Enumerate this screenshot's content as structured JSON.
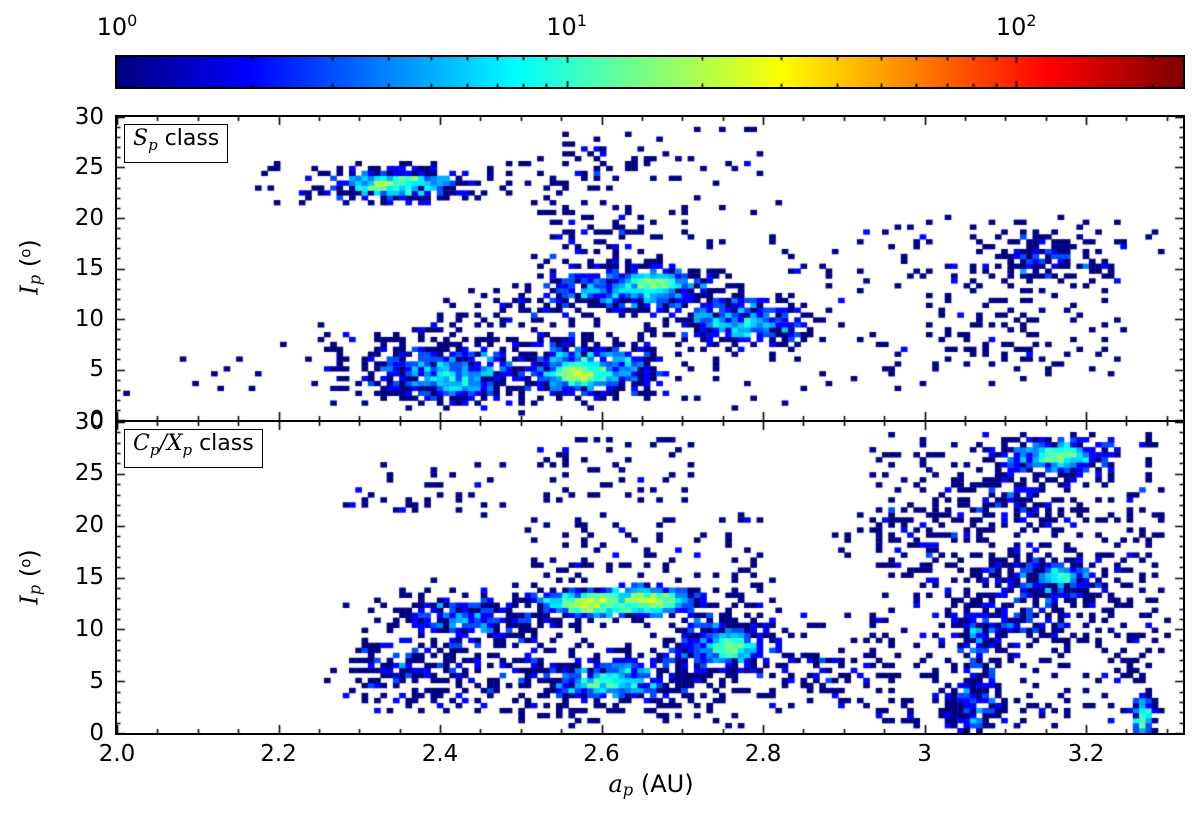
{
  "figure": {
    "background": "#ffffff",
    "kind": "matplotlib-style two-panel 2D histogram of asteroid proper elements"
  },
  "colorbar": {
    "orientation": "horizontal",
    "colormap": "jet",
    "scale": "log",
    "vmin": 1,
    "vmax": 235,
    "ticks": [
      {
        "base": "10",
        "exp": "0",
        "value": 1
      },
      {
        "base": "10",
        "exp": "1",
        "value": 10
      },
      {
        "base": "10",
        "exp": "2",
        "value": 100
      }
    ]
  },
  "axes": {
    "xlim": [
      2.0,
      3.32
    ],
    "ylim": [
      0,
      30
    ],
    "xlabel_parts": [
      {
        "text": "a",
        "kind": "mvar"
      },
      {
        "text": "p",
        "kind": "msub"
      },
      {
        "text": " (AU)",
        "kind": "plain"
      }
    ],
    "ylabel_parts": [
      {
        "text": "I",
        "kind": "mvar"
      },
      {
        "text": "p",
        "kind": "msub"
      },
      {
        "text": " (",
        "kind": "plain"
      },
      {
        "text": "o",
        "kind": "msup"
      },
      {
        "text": ")",
        "kind": "plain"
      }
    ],
    "xticks": [
      {
        "label": "2.0",
        "value": 2.0
      },
      {
        "label": "2.2",
        "value": 2.2
      },
      {
        "label": "2.4",
        "value": 2.4
      },
      {
        "label": "2.6",
        "value": 2.6
      },
      {
        "label": "2.8",
        "value": 2.8
      },
      {
        "label": "3",
        "value": 3.0
      },
      {
        "label": "3.2",
        "value": 3.2
      }
    ],
    "yticks_top": [
      {
        "label": "30",
        "value": 30
      },
      {
        "label": "25",
        "value": 25
      },
      {
        "label": "20",
        "value": 20
      },
      {
        "label": "15",
        "value": 15
      },
      {
        "label": "10",
        "value": 10
      },
      {
        "label": "5",
        "value": 5
      },
      {
        "label": "0",
        "value": 0
      }
    ],
    "yticks_bottom": [
      {
        "label": "30",
        "value": 30
      },
      {
        "label": "25",
        "value": 25
      },
      {
        "label": "20",
        "value": 20
      },
      {
        "label": "15",
        "value": 15
      },
      {
        "label": "10",
        "value": 10
      },
      {
        "label": "5",
        "value": 5
      },
      {
        "label": "0",
        "value": 0
      }
    ]
  },
  "chart_data": [
    {
      "type": "heatmap",
      "title": "S_p class",
      "label_parts": [
        {
          "text": "S",
          "kind": "mvar"
        },
        {
          "text": "p",
          "kind": "msub"
        },
        {
          "text": " class",
          "kind": "plain"
        }
      ],
      "xlabel": "a_p (AU)",
      "ylabel": "I_p (deg)",
      "xlim": [
        2.0,
        3.32
      ],
      "ylim": [
        0,
        30
      ],
      "color_scale": {
        "type": "log",
        "vmin": 1,
        "vmax": 235,
        "colormap": "jet"
      },
      "bins": {
        "nx": 170,
        "ny": 62
      },
      "cluster_format": [
        "x_center_au",
        "y_center_deg",
        "x_sigma_au",
        "y_sigma_deg",
        "n_points"
      ],
      "scatter_format": [
        "x_min",
        "x_max",
        "y_min",
        "y_max",
        "n_points"
      ],
      "clusters": [
        [
          2.35,
          23.4,
          0.04,
          0.7,
          420
        ],
        [
          2.33,
          23.2,
          0.015,
          0.4,
          90
        ],
        [
          2.4,
          5.0,
          0.05,
          1.5,
          420
        ],
        [
          2.42,
          3.8,
          0.025,
          0.9,
          160
        ],
        [
          2.59,
          5.0,
          0.04,
          1.2,
          550
        ],
        [
          2.57,
          4.5,
          0.018,
          0.6,
          300
        ],
        [
          2.63,
          12.8,
          0.05,
          1.1,
          480
        ],
        [
          2.67,
          13.6,
          0.022,
          0.45,
          220
        ],
        [
          2.76,
          10.0,
          0.04,
          1.3,
          300
        ],
        [
          2.8,
          9.3,
          0.025,
          0.9,
          120
        ],
        [
          3.15,
          16.0,
          0.04,
          1.2,
          130
        ],
        [
          3.1,
          9.0,
          0.05,
          2.0,
          50
        ],
        [
          2.6,
          25.5,
          0.03,
          1.0,
          25
        ]
      ],
      "scatter": [
        [
          2.17,
          2.55,
          21.5,
          25.8,
          70
        ],
        [
          2.25,
          2.55,
          1.5,
          9.5,
          90
        ],
        [
          2.38,
          2.52,
          9.0,
          13.0,
          25
        ],
        [
          2.53,
          2.65,
          15.0,
          21.5,
          60
        ],
        [
          2.55,
          2.8,
          23.0,
          29.0,
          40
        ],
        [
          2.85,
          3.25,
          3.0,
          20.0,
          150
        ],
        [
          2.0,
          2.25,
          2.5,
          8.0,
          12
        ],
        [
          2.45,
          2.55,
          7.0,
          12.0,
          30
        ],
        [
          2.5,
          2.85,
          1.0,
          22.0,
          120
        ],
        [
          3.28,
          3.31,
          16.5,
          18.5,
          3
        ]
      ]
    },
    {
      "type": "heatmap",
      "title": "C_p/X_p class",
      "label_parts": [
        {
          "text": "C",
          "kind": "mvar"
        },
        {
          "text": "p",
          "kind": "msub"
        },
        {
          "text": "/",
          "kind": "mvar"
        },
        {
          "text": "X",
          "kind": "mvar"
        },
        {
          "text": "p",
          "kind": "msub"
        },
        {
          "text": " class",
          "kind": "plain"
        }
      ],
      "xlabel": "a_p (AU)",
      "ylabel": "I_p (deg)",
      "xlim": [
        2.0,
        3.32
      ],
      "ylim": [
        0,
        30
      ],
      "color_scale": {
        "type": "log",
        "vmin": 1,
        "vmax": 235,
        "colormap": "jet"
      },
      "bins": {
        "nx": 170,
        "ny": 62
      },
      "cluster_format": [
        "x_center_au",
        "y_center_deg",
        "x_sigma_au",
        "y_sigma_deg",
        "n_points"
      ],
      "scatter_format": [
        "x_min",
        "x_max",
        "y_min",
        "y_max",
        "n_points"
      ],
      "clusters": [
        [
          2.62,
          12.6,
          0.055,
          0.7,
          650
        ],
        [
          2.585,
          12.5,
          0.02,
          0.45,
          280
        ],
        [
          2.665,
          12.8,
          0.02,
          0.45,
          240
        ],
        [
          2.43,
          11.0,
          0.045,
          1.1,
          280
        ],
        [
          2.37,
          6.0,
          0.05,
          1.5,
          100
        ],
        [
          2.62,
          5.2,
          0.05,
          1.2,
          420
        ],
        [
          2.6,
          4.8,
          0.02,
          0.6,
          120
        ],
        [
          2.75,
          8.5,
          0.03,
          1.2,
          330
        ],
        [
          2.76,
          8.2,
          0.013,
          0.5,
          140
        ],
        [
          2.88,
          6.5,
          0.04,
          1.2,
          55
        ],
        [
          3.16,
          26.6,
          0.035,
          0.9,
          300
        ],
        [
          3.17,
          26.8,
          0.015,
          0.5,
          130
        ],
        [
          3.15,
          14.8,
          0.045,
          1.4,
          240
        ],
        [
          3.17,
          15.2,
          0.013,
          0.4,
          80
        ],
        [
          3.11,
          10.5,
          0.045,
          1.5,
          140
        ],
        [
          3.06,
          2.5,
          0.018,
          1.5,
          140
        ],
        [
          3.07,
          8.5,
          0.012,
          2.5,
          80
        ],
        [
          3.272,
          1.5,
          0.006,
          1.1,
          130
        ],
        [
          3.1,
          22.5,
          0.045,
          1.4,
          110
        ],
        [
          3.0,
          19.0,
          0.05,
          1.5,
          60
        ]
      ],
      "scatter": [
        [
          2.28,
          2.52,
          2.0,
          9.0,
          140
        ],
        [
          2.5,
          2.82,
          0.5,
          21.0,
          260
        ],
        [
          2.28,
          2.48,
          21.0,
          26.0,
          40
        ],
        [
          2.52,
          2.72,
          22.0,
          28.5,
          55
        ],
        [
          2.93,
          3.28,
          0.5,
          29.0,
          420
        ],
        [
          3.25,
          3.3,
          4.0,
          28.0,
          45
        ],
        [
          2.83,
          2.95,
          2.0,
          12.0,
          40
        ]
      ]
    }
  ]
}
